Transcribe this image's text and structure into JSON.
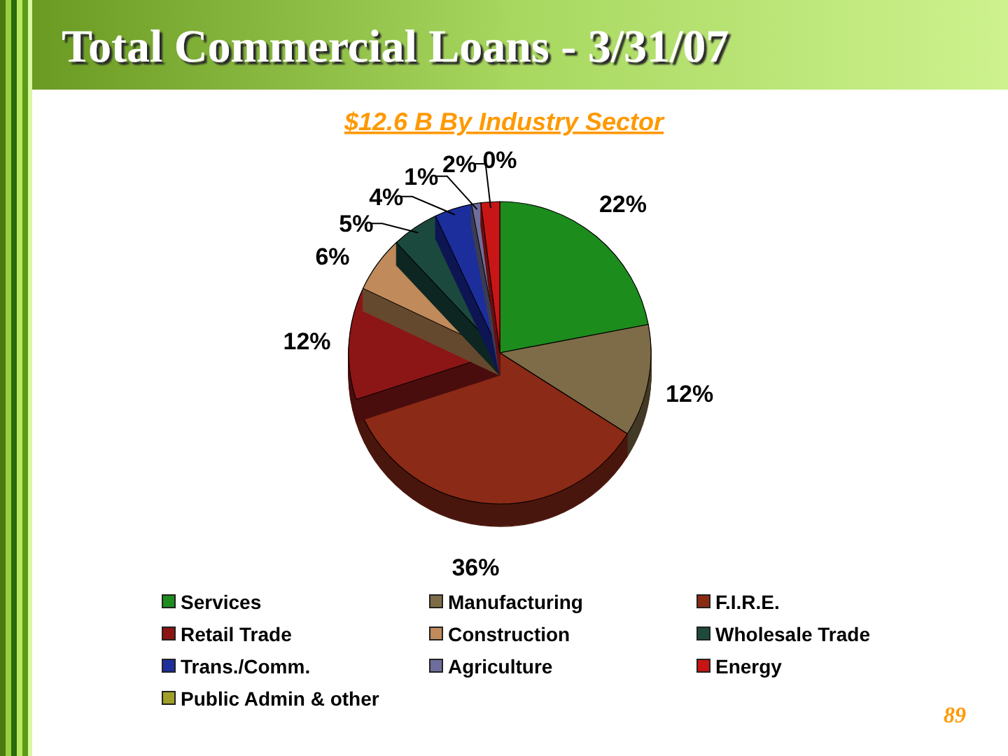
{
  "chart_data": {
    "type": "pie",
    "title": "Total Commercial Loans - 3/31/07",
    "subtitle": "$12.6 B By Industry Sector",
    "categories": [
      "Services",
      "Manufacturing",
      "F.I.R.E.",
      "Retail Trade",
      "Construction",
      "Wholesale Trade",
      "Trans./Comm.",
      "Agriculture",
      "Energy",
      "Public Admin & other"
    ],
    "values": [
      22,
      12,
      36,
      12,
      6,
      5,
      4,
      1,
      2,
      0
    ],
    "colors": [
      "#1e8c1e",
      "#7d6c46",
      "#8b2a12",
      "#8c1414",
      "#c08a5a",
      "#1e4a3c",
      "#1e2e9c",
      "#6e6e9c",
      "#c81414",
      "#a0a028"
    ],
    "value_labels": [
      "22%",
      "12%",
      "36%",
      "12%",
      "6%",
      "5%",
      "4%",
      "1%",
      "2%",
      "0%"
    ],
    "legend": "bottom",
    "annotations": [
      "89"
    ]
  }
}
